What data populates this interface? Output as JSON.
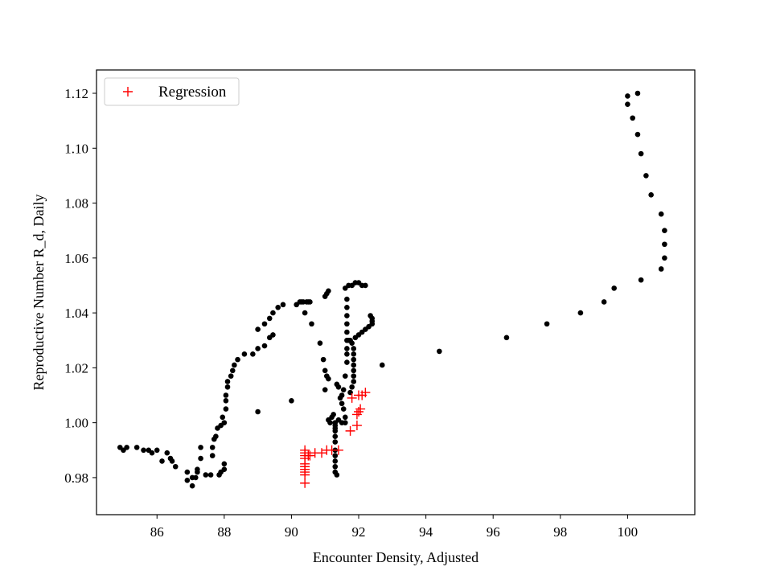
{
  "chart_data": {
    "type": "scatter",
    "xlabel": "Encounter Density, Adjusted",
    "ylabel": "Reproductive Number R_d, Daily",
    "xlim": [
      84.2,
      102.0
    ],
    "ylim": [
      0.9665,
      1.1285
    ],
    "xticks": [
      86,
      88,
      90,
      92,
      94,
      96,
      98,
      100
    ],
    "yticks": [
      0.98,
      1.0,
      1.02,
      1.04,
      1.06,
      1.08,
      1.1,
      1.12
    ],
    "ytick_labels": [
      "0.98",
      "1.00",
      "1.02",
      "1.04",
      "1.06",
      "1.08",
      "1.10",
      "1.12"
    ],
    "grid": false,
    "legend_position": "upper left",
    "series": [
      {
        "marker": "dot",
        "color": "#000000",
        "points": [
          [
            84.9,
            0.991
          ],
          [
            85.0,
            0.99
          ],
          [
            85.1,
            0.991
          ],
          [
            85.4,
            0.991
          ],
          [
            85.6,
            0.99
          ],
          [
            85.75,
            0.99
          ],
          [
            85.85,
            0.989
          ],
          [
            86.0,
            0.99
          ],
          [
            86.15,
            0.986
          ],
          [
            86.3,
            0.989
          ],
          [
            86.4,
            0.987
          ],
          [
            86.45,
            0.986
          ],
          [
            86.55,
            0.984
          ],
          [
            86.9,
            0.982
          ],
          [
            86.9,
            0.979
          ],
          [
            87.05,
            0.977
          ],
          [
            87.05,
            0.98
          ],
          [
            87.15,
            0.98
          ],
          [
            87.2,
            0.982
          ],
          [
            87.2,
            0.983
          ],
          [
            87.3,
            0.987
          ],
          [
            87.3,
            0.991
          ],
          [
            87.45,
            0.981
          ],
          [
            87.6,
            0.981
          ],
          [
            87.65,
            0.988
          ],
          [
            87.65,
            0.991
          ],
          [
            87.7,
            0.994
          ],
          [
            87.75,
            0.995
          ],
          [
            87.8,
            0.998
          ],
          [
            87.85,
            0.981
          ],
          [
            87.9,
            0.982
          ],
          [
            87.9,
            0.999
          ],
          [
            87.95,
            1.002
          ],
          [
            88.0,
            0.983
          ],
          [
            88.0,
            0.985
          ],
          [
            88.0,
            1.0
          ],
          [
            88.05,
            1.005
          ],
          [
            88.05,
            1.008
          ],
          [
            88.05,
            1.01
          ],
          [
            88.1,
            1.013
          ],
          [
            88.1,
            1.015
          ],
          [
            88.2,
            1.017
          ],
          [
            88.25,
            1.019
          ],
          [
            88.3,
            1.021
          ],
          [
            88.4,
            1.023
          ],
          [
            88.6,
            1.025
          ],
          [
            88.85,
            1.025
          ],
          [
            89.0,
            1.027
          ],
          [
            89.0,
            1.034
          ],
          [
            89.2,
            1.028
          ],
          [
            89.2,
            1.036
          ],
          [
            89.35,
            1.031
          ],
          [
            89.35,
            1.038
          ],
          [
            89.45,
            1.032
          ],
          [
            89.45,
            1.04
          ],
          [
            89.6,
            1.042
          ],
          [
            89.75,
            1.043
          ],
          [
            89.0,
            1.004
          ],
          [
            90.0,
            1.008
          ],
          [
            90.15,
            1.043
          ],
          [
            90.25,
            1.044
          ],
          [
            90.3,
            1.044
          ],
          [
            90.35,
            1.044
          ],
          [
            90.45,
            1.044
          ],
          [
            90.5,
            1.044
          ],
          [
            90.55,
            1.044
          ],
          [
            90.4,
            1.04
          ],
          [
            90.6,
            1.036
          ],
          [
            90.85,
            1.029
          ],
          [
            90.95,
            1.023
          ],
          [
            91.0,
            1.019
          ],
          [
            91.05,
            1.017
          ],
          [
            91.1,
            1.016
          ],
          [
            91.0,
            1.046
          ],
          [
            91.05,
            1.047
          ],
          [
            91.1,
            1.048
          ],
          [
            91.0,
            1.012
          ],
          [
            91.1,
            1.001
          ],
          [
            91.15,
            1.0
          ],
          [
            91.2,
            1.002
          ],
          [
            91.25,
            1.003
          ],
          [
            91.3,
            1.0
          ],
          [
            91.3,
            0.999
          ],
          [
            91.3,
            0.998
          ],
          [
            91.3,
            0.997
          ],
          [
            91.3,
            0.995
          ],
          [
            91.3,
            0.993
          ],
          [
            91.3,
            0.99
          ],
          [
            91.3,
            0.988
          ],
          [
            91.3,
            0.986
          ],
          [
            91.3,
            0.984
          ],
          [
            91.3,
            0.982
          ],
          [
            91.35,
            0.981
          ],
          [
            91.35,
            1.014
          ],
          [
            91.4,
            1.013
          ],
          [
            91.45,
            1.009
          ],
          [
            91.5,
            1.007
          ],
          [
            91.55,
            1.005
          ],
          [
            91.6,
            1.002
          ],
          [
            91.6,
            1.0
          ],
          [
            91.5,
            1.0
          ],
          [
            91.4,
            1.001
          ],
          [
            91.5,
            1.01
          ],
          [
            91.55,
            1.012
          ],
          [
            91.6,
            1.017
          ],
          [
            91.65,
            1.022
          ],
          [
            91.65,
            1.025
          ],
          [
            91.65,
            1.027
          ],
          [
            91.65,
            1.03
          ],
          [
            91.65,
            1.033
          ],
          [
            91.65,
            1.036
          ],
          [
            91.65,
            1.039
          ],
          [
            91.65,
            1.042
          ],
          [
            91.65,
            1.045
          ],
          [
            91.6,
            1.049
          ],
          [
            91.7,
            1.03
          ],
          [
            91.75,
            1.03
          ],
          [
            91.8,
            1.029
          ],
          [
            91.85,
            1.027
          ],
          [
            91.85,
            1.025
          ],
          [
            91.85,
            1.023
          ],
          [
            91.85,
            1.021
          ],
          [
            91.85,
            1.019
          ],
          [
            91.85,
            1.017
          ],
          [
            91.85,
            1.015
          ],
          [
            91.8,
            1.013
          ],
          [
            91.75,
            1.011
          ],
          [
            91.9,
            1.031
          ],
          [
            92.0,
            1.032
          ],
          [
            92.1,
            1.033
          ],
          [
            92.2,
            1.034
          ],
          [
            92.3,
            1.035
          ],
          [
            92.4,
            1.036
          ],
          [
            92.4,
            1.037
          ],
          [
            92.4,
            1.038
          ],
          [
            92.35,
            1.039
          ],
          [
            91.7,
            1.05
          ],
          [
            91.8,
            1.05
          ],
          [
            91.9,
            1.051
          ],
          [
            92.0,
            1.051
          ],
          [
            92.1,
            1.05
          ],
          [
            92.2,
            1.05
          ],
          [
            92.7,
            1.021
          ],
          [
            94.4,
            1.026
          ],
          [
            96.4,
            1.031
          ],
          [
            97.6,
            1.036
          ],
          [
            98.6,
            1.04
          ],
          [
            99.3,
            1.044
          ],
          [
            99.6,
            1.049
          ],
          [
            100.4,
            1.052
          ],
          [
            101.0,
            1.056
          ],
          [
            101.1,
            1.06
          ],
          [
            101.1,
            1.065
          ],
          [
            101.1,
            1.07
          ],
          [
            101.0,
            1.076
          ],
          [
            100.7,
            1.083
          ],
          [
            100.55,
            1.09
          ],
          [
            100.4,
            1.098
          ],
          [
            100.3,
            1.105
          ],
          [
            100.15,
            1.111
          ],
          [
            100.0,
            1.116
          ],
          [
            100.0,
            1.119
          ],
          [
            100.3,
            1.12
          ]
        ]
      },
      {
        "name": "Regression",
        "marker": "plus",
        "color": "#ff0000",
        "points": [
          [
            90.4,
            0.978
          ],
          [
            90.4,
            0.981
          ],
          [
            90.4,
            0.982
          ],
          [
            90.4,
            0.983
          ],
          [
            90.4,
            0.984
          ],
          [
            90.4,
            0.985
          ],
          [
            90.4,
            0.987
          ],
          [
            90.4,
            0.988
          ],
          [
            90.4,
            0.989
          ],
          [
            90.4,
            0.99
          ],
          [
            90.5,
            0.988
          ],
          [
            90.55,
            0.988
          ],
          [
            90.7,
            0.989
          ],
          [
            90.9,
            0.989
          ],
          [
            91.05,
            0.99
          ],
          [
            91.2,
            0.99
          ],
          [
            91.4,
            0.99
          ],
          [
            91.75,
            0.997
          ],
          [
            91.95,
            0.999
          ],
          [
            91.95,
            1.003
          ],
          [
            92.05,
            1.005
          ],
          [
            92.0,
            1.004
          ],
          [
            91.8,
            1.009
          ],
          [
            92.0,
            1.01
          ],
          [
            92.1,
            1.01
          ],
          [
            92.2,
            1.011
          ]
        ]
      }
    ]
  }
}
